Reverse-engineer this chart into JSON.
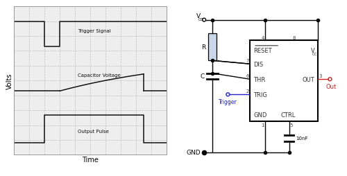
{
  "fig_width": 5.0,
  "fig_height": 2.55,
  "dpi": 100,
  "left_panel": {
    "xlabel": "Time",
    "ylabel": "Volts",
    "grid_color": "#bbbbbb",
    "line_color": "#111111",
    "bg_color": "#eeeeee",
    "trigger_label": "Trigger Signal",
    "cap_label": "Capacitor Voltage",
    "out_label": "Output Pulse"
  },
  "right_panel": {
    "r_label": "R",
    "c_label": "C",
    "gnd_label": "GND",
    "trigger_label": "Trigger",
    "out_label": "Out",
    "pins": {
      "reset": "RESET",
      "vcc_pin": "V",
      "dis": "DIS",
      "thr": "THR",
      "out": "OUT",
      "trig": "TRIG",
      "gnd": "GND",
      "ctrl": "CTRL"
    },
    "pin_numbers": {
      "reset": "4",
      "vcc_pin": "8",
      "dis": "7",
      "thr": "6",
      "out": "3",
      "trig": "2",
      "gnd": "1",
      "ctrl": "5"
    },
    "cap_label": "10nF",
    "resistor_color": "#c8d8e8",
    "line_color": "#000000",
    "trigger_color": "#2222cc",
    "out_color": "#cc2222"
  }
}
